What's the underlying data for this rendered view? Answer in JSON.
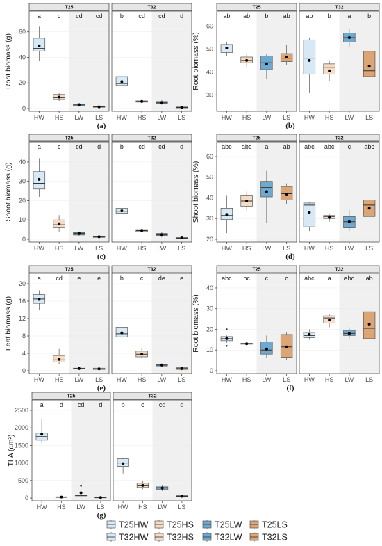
{
  "colors": {
    "HW": "#d6e9f5",
    "HS": "#f6dcc4",
    "LW": "#6fa9cf",
    "LS": "#dca575"
  },
  "legend": {
    "T25": [
      "T25HW",
      "T25HS",
      "T25LW",
      "T25LS"
    ],
    "T32": [
      "T32HW",
      "T32HS",
      "T32LW",
      "T32LS"
    ]
  },
  "chart_data": [
    {
      "type": "box",
      "label": "(a)",
      "ylabel": "Root biomass (g)",
      "categories": [
        "HW",
        "HS",
        "LW",
        "LS"
      ],
      "facets": [
        "T25",
        "T32"
      ],
      "ylim": [
        0,
        68
      ],
      "yticks": [
        0,
        20,
        40,
        60
      ],
      "groups": {
        "T25": {
          "letters": [
            "a",
            "c",
            "cd",
            "cd"
          ],
          "boxes": [
            {
              "min": 37,
              "q1": 45,
              "median": 47,
              "q3": 55,
              "max": 64,
              "mean": 49,
              "outliers": []
            },
            {
              "min": 6,
              "q1": 7,
              "median": 8.5,
              "q3": 11,
              "max": 12,
              "mean": 9,
              "outliers": []
            },
            {
              "min": 1.5,
              "q1": 2,
              "median": 2.8,
              "q3": 3.5,
              "max": 4,
              "mean": 3,
              "outliers": []
            },
            {
              "min": 0.8,
              "q1": 1,
              "median": 1.3,
              "q3": 1.6,
              "max": 1.8,
              "mean": 1.3,
              "outliers": []
            }
          ]
        },
        "T32": {
          "letters": [
            "b",
            "cd",
            "cd",
            "d"
          ],
          "boxes": [
            {
              "min": 16,
              "q1": 18,
              "median": 19.5,
              "q3": 25,
              "max": 28,
              "mean": 21,
              "outliers": []
            },
            {
              "min": 4.5,
              "q1": 5,
              "median": 5.5,
              "q3": 6,
              "max": 7,
              "mean": 5.5,
              "outliers": []
            },
            {
              "min": 3,
              "q1": 3.8,
              "median": 4.5,
              "q3": 5.5,
              "max": 6.5,
              "mean": 4.7,
              "outliers": []
            },
            {
              "min": 0.3,
              "q1": 0.5,
              "median": 0.8,
              "q3": 1.2,
              "max": 1.5,
              "mean": 0.9,
              "outliers": []
            }
          ]
        }
      }
    },
    {
      "type": "box",
      "label": "(b)",
      "ylabel": "Root biomass (%)",
      "categories": [
        "HW",
        "HS",
        "LW",
        "LS"
      ],
      "facets": [
        "T25",
        "T32"
      ],
      "ylim": [
        24,
        62
      ],
      "yticks": [
        30,
        40,
        50,
        60
      ],
      "groups": {
        "T25": {
          "letters": [
            "ab",
            "ab",
            "b",
            "ab"
          ],
          "boxes": [
            {
              "min": 47,
              "q1": 48.5,
              "median": 50,
              "q3": 52,
              "max": 53,
              "mean": 50.5,
              "outliers": []
            },
            {
              "min": 42,
              "q1": 44,
              "median": 45,
              "q3": 46.5,
              "max": 48,
              "mean": 45,
              "outliers": []
            },
            {
              "min": 37,
              "q1": 41,
              "median": 44,
              "q3": 47,
              "max": 48,
              "mean": 43.5,
              "outliers": []
            },
            {
              "min": 43,
              "q1": 44.5,
              "median": 46,
              "q3": 48,
              "max": 52,
              "mean": 46.5,
              "outliers": []
            }
          ]
        },
        "T32": {
          "letters": [
            "ab",
            "b",
            "a",
            "b"
          ],
          "boxes": [
            {
              "min": 31,
              "q1": 39,
              "median": 46,
              "q3": 54,
              "max": 55,
              "mean": 45,
              "outliers": []
            },
            {
              "min": 36,
              "q1": 39,
              "median": 42,
              "q3": 43.5,
              "max": 45,
              "mean": 40.5,
              "outliers": []
            },
            {
              "min": 51,
              "q1": 53,
              "median": 55,
              "q3": 57,
              "max": 59,
              "mean": 55,
              "outliers": []
            },
            {
              "min": 33,
              "q1": 38,
              "median": 40.5,
              "q3": 49,
              "max": 50,
              "mean": 42.5,
              "outliers": []
            }
          ]
        }
      }
    },
    {
      "type": "box",
      "label": "(c)",
      "ylabel": "Shoot biomass (g)",
      "categories": [
        "HW",
        "HS",
        "LW",
        "LS"
      ],
      "facets": [
        "T25",
        "T32"
      ],
      "ylim": [
        0,
        45
      ],
      "yticks": [
        0,
        10,
        20,
        30,
        40
      ],
      "groups": {
        "T25": {
          "letters": [
            "a",
            "c",
            "cd",
            "d"
          ],
          "boxes": [
            {
              "min": 22,
              "q1": 26,
              "median": 29,
              "q3": 35,
              "max": 42,
              "mean": 31,
              "outliers": []
            },
            {
              "min": 4,
              "q1": 6,
              "median": 7.5,
              "q3": 10,
              "max": 12.5,
              "mean": 8,
              "outliers": []
            },
            {
              "min": 1.5,
              "q1": 2.2,
              "median": 3,
              "q3": 3.5,
              "max": 4,
              "mean": 3,
              "outliers": []
            },
            {
              "min": 0.8,
              "q1": 1,
              "median": 1.2,
              "q3": 1.6,
              "max": 2,
              "mean": 1.3,
              "outliers": []
            }
          ]
        },
        "T32": {
          "letters": [
            "b",
            "cd",
            "cd",
            "d"
          ],
          "boxes": [
            {
              "min": 12.5,
              "q1": 13.5,
              "median": 14.5,
              "q3": 16,
              "max": 16.5,
              "mean": 14.7,
              "outliers": []
            },
            {
              "min": 3.5,
              "q1": 4,
              "median": 4.5,
              "q3": 5,
              "max": 5.5,
              "mean": 4.6,
              "outliers": []
            },
            {
              "min": 1,
              "q1": 1.8,
              "median": 2.3,
              "q3": 3,
              "max": 3.8,
              "mean": 2.4,
              "outliers": []
            },
            {
              "min": 0.2,
              "q1": 0.4,
              "median": 0.6,
              "q3": 0.9,
              "max": 1.1,
              "mean": 0.7,
              "outliers": []
            }
          ]
        }
      }
    },
    {
      "type": "box",
      "label": "(d)",
      "ylabel": "Shoot biomass (%)",
      "categories": [
        "HW",
        "HS",
        "LW",
        "LS"
      ],
      "facets": [
        "T25",
        "T32"
      ],
      "ylim": [
        20,
        62
      ],
      "yticks": [
        20,
        30,
        40,
        50,
        60
      ],
      "groups": {
        "T25": {
          "letters": [
            "abc",
            "abc",
            "a",
            "ab"
          ],
          "boxes": [
            {
              "min": 23,
              "q1": 29.5,
              "median": 31.5,
              "q3": 35,
              "max": 41,
              "mean": 32,
              "outliers": []
            },
            {
              "min": 34,
              "q1": 36,
              "median": 38.5,
              "q3": 41,
              "max": 43,
              "mean": 38.5,
              "outliers": []
            },
            {
              "min": 28,
              "q1": 40.5,
              "median": 45,
              "q3": 48,
              "max": 53,
              "mean": 43,
              "outliers": []
            },
            {
              "min": 37,
              "q1": 39,
              "median": 42,
              "q3": 45.5,
              "max": 47,
              "mean": 41.5,
              "outliers": []
            }
          ]
        },
        "T32": {
          "letters": [
            "abc",
            "abc",
            "c",
            "abc"
          ],
          "boxes": [
            {
              "min": 24,
              "q1": 26,
              "median": 36.5,
              "q3": 37.5,
              "max": 38,
              "mean": 33,
              "outliers": []
            },
            {
              "min": 28.5,
              "q1": 30,
              "median": 31,
              "q3": 31.5,
              "max": 32.5,
              "mean": 30.5,
              "outliers": []
            },
            {
              "min": 24,
              "q1": 25.5,
              "median": 28.5,
              "q3": 31,
              "max": 34,
              "mean": 28.5,
              "outliers": []
            },
            {
              "min": 26,
              "q1": 31,
              "median": 36.5,
              "q3": 39,
              "max": 40.5,
              "mean": 35,
              "outliers": []
            }
          ]
        }
      }
    },
    {
      "type": "box",
      "label": "(e)",
      "ylabel": "Leaf biomass (g)",
      "categories": [
        "HW",
        "HS",
        "LW",
        "LS"
      ],
      "facets": [
        "T25",
        "T32"
      ],
      "ylim": [
        0,
        20
      ],
      "yticks": [
        0,
        4,
        8,
        12,
        16,
        20
      ],
      "groups": {
        "T25": {
          "letters": [
            "a",
            "cd",
            "e",
            "e"
          ],
          "boxes": [
            {
              "min": 14,
              "q1": 15.5,
              "median": 16.5,
              "q3": 17.5,
              "max": 18.5,
              "mean": 16.4,
              "outliers": []
            },
            {
              "min": 1.5,
              "q1": 2,
              "median": 2.5,
              "q3": 3.5,
              "max": 5,
              "mean": 2.6,
              "outliers": []
            },
            {
              "min": 0.3,
              "q1": 0.4,
              "median": 0.5,
              "q3": 0.6,
              "max": 0.7,
              "mean": 0.5,
              "outliers": []
            },
            {
              "min": 0.2,
              "q1": 0.3,
              "median": 0.4,
              "q3": 0.6,
              "max": 0.8,
              "mean": 0.45,
              "outliers": []
            }
          ]
        },
        "T32": {
          "letters": [
            "b",
            "c",
            "de",
            "e"
          ],
          "boxes": [
            {
              "min": 6.5,
              "q1": 7.8,
              "median": 8.5,
              "q3": 10,
              "max": 11,
              "mean": 8.7,
              "outliers": []
            },
            {
              "min": 2.8,
              "q1": 3.2,
              "median": 3.8,
              "q3": 4.5,
              "max": 5.2,
              "mean": 3.8,
              "outliers": []
            },
            {
              "min": 1,
              "q1": 1.1,
              "median": 1.3,
              "q3": 1.5,
              "max": 1.7,
              "mean": 1.3,
              "outliers": []
            },
            {
              "min": 0.1,
              "q1": 0.3,
              "median": 0.5,
              "q3": 0.7,
              "max": 0.9,
              "mean": 0.5,
              "outliers": []
            }
          ]
        }
      }
    },
    {
      "type": "box",
      "label": "(f)",
      "ylabel": "Root biomass (%)",
      "categories": [
        "HW",
        "HS",
        "LW",
        "LS"
      ],
      "facets": [
        "T25",
        "T32"
      ],
      "ylim": [
        0,
        42
      ],
      "yticks": [
        0,
        10,
        20,
        30,
        40
      ],
      "groups": {
        "T25": {
          "letters": [
            "abc",
            "bc",
            "c",
            "c"
          ],
          "boxes": [
            {
              "min": 13.5,
              "q1": 14.5,
              "median": 15.5,
              "q3": 16.5,
              "max": 17,
              "mean": 15.5,
              "outliers": [
                12,
                20
              ]
            },
            {
              "min": 12.5,
              "q1": 12.8,
              "median": 13,
              "q3": 13.3,
              "max": 13.8,
              "mean": 13,
              "outliers": []
            },
            {
              "min": 6,
              "q1": 8,
              "median": 10,
              "q3": 14,
              "max": 17,
              "mean": 10.5,
              "outliers": []
            },
            {
              "min": 5,
              "q1": 6.5,
              "median": 11.5,
              "q3": 17.5,
              "max": 18.5,
              "mean": 11.5,
              "outliers": []
            }
          ]
        },
        "T32": {
          "letters": [
            "abc",
            "a",
            "abc",
            "ab"
          ],
          "boxes": [
            {
              "min": 15,
              "q1": 16,
              "median": 17,
              "q3": 18.5,
              "max": 20,
              "mean": 17.5,
              "outliers": []
            },
            {
              "min": 21,
              "q1": 23,
              "median": 25.5,
              "q3": 26.5,
              "max": 27.5,
              "mean": 24.5,
              "outliers": []
            },
            {
              "min": 15.5,
              "q1": 17,
              "median": 18,
              "q3": 19.5,
              "max": 21,
              "mean": 18,
              "outliers": []
            },
            {
              "min": 12,
              "q1": 15.5,
              "median": 20.5,
              "q3": 28.5,
              "max": 36,
              "mean": 22.5,
              "outliers": []
            }
          ]
        }
      }
    },
    {
      "type": "box",
      "label": "(g)",
      "ylabel": "TLA (cm²)",
      "categories": [
        "HW",
        "HS",
        "LW",
        "LS"
      ],
      "facets": [
        "T25",
        "T32"
      ],
      "ylim": [
        0,
        2500
      ],
      "yticks": [
        0,
        500,
        1000,
        1500,
        2000,
        2500
      ],
      "groups": {
        "T25": {
          "letters": [
            "a",
            "d",
            "cd",
            "d"
          ],
          "boxes": [
            {
              "min": 1560,
              "q1": 1650,
              "median": 1750,
              "q3": 1850,
              "max": 2250,
              "mean": 1820,
              "outliers": []
            },
            {
              "min": 10,
              "q1": 15,
              "median": 25,
              "q3": 35,
              "max": 45,
              "mean": 28,
              "outliers": []
            },
            {
              "min": 40,
              "q1": 60,
              "median": 75,
              "q3": 90,
              "max": 110,
              "mean": 150,
              "outliers": [
                350
              ]
            },
            {
              "min": 5,
              "q1": 10,
              "median": 15,
              "q3": 20,
              "max": 30,
              "mean": 16,
              "outliers": []
            }
          ]
        },
        "T32": {
          "letters": [
            "b",
            "c",
            "cd",
            "d"
          ],
          "boxes": [
            {
              "min": 700,
              "q1": 900,
              "median": 1000,
              "q3": 1120,
              "max": 1150,
              "mean": 980,
              "outliers": []
            },
            {
              "min": 250,
              "q1": 300,
              "median": 350,
              "q3": 420,
              "max": 480,
              "mean": 360,
              "outliers": []
            },
            {
              "min": 200,
              "q1": 250,
              "median": 290,
              "q3": 320,
              "max": 360,
              "mean": 285,
              "outliers": []
            },
            {
              "min": 20,
              "q1": 30,
              "median": 50,
              "q3": 70,
              "max": 90,
              "mean": 50,
              "outliers": []
            }
          ]
        }
      }
    }
  ]
}
